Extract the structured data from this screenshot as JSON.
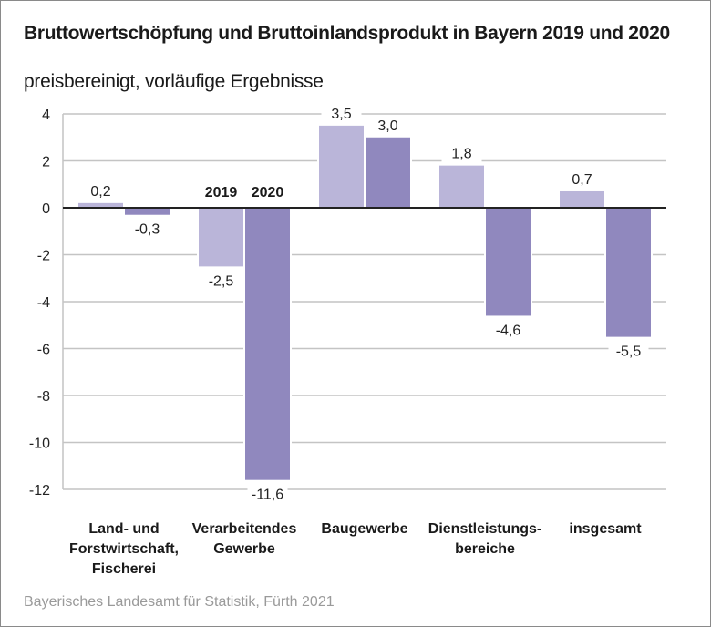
{
  "chart_data": {
    "type": "bar",
    "title": "Bruttowertschöpfung und Bruttoinlandsprodukt in Bayern 2019 und 2020",
    "subtitle": "preisbereinigt, vorläufige Ergebnisse",
    "xlabel": "",
    "ylabel": "",
    "ylim": [
      -12,
      4
    ],
    "yticks": [
      4,
      2,
      0,
      -2,
      -4,
      -6,
      -8,
      -10,
      -12
    ],
    "grid": true,
    "categories": [
      [
        "Land- und",
        "Forstwirtschaft,",
        "Fischerei"
      ],
      [
        "Verarbeitendes",
        "Gewerbe"
      ],
      [
        "Baugewerbe"
      ],
      [
        "Dienstleistungs-",
        "bereiche"
      ],
      [
        "insgesamt"
      ]
    ],
    "series": [
      {
        "name": "2019",
        "color": "#bab5d9",
        "values": [
          0.2,
          -2.5,
          3.5,
          1.8,
          0.7
        ],
        "labels": [
          "0,2",
          "-2,5",
          "3,5",
          "1,8",
          "0,7"
        ]
      },
      {
        "name": "2020",
        "color": "#9088be",
        "values": [
          -0.3,
          -11.6,
          3.0,
          -4.6,
          -5.5
        ],
        "labels": [
          "-0,3",
          "-11,6",
          "3,0",
          "-4,6",
          "-5,5"
        ]
      }
    ],
    "legend": {
      "placement": "inline-above-second-group",
      "entries": [
        "2019",
        "2020"
      ]
    },
    "source": "Bayerisches Landesamt für Statistik, Fürth 2021"
  }
}
